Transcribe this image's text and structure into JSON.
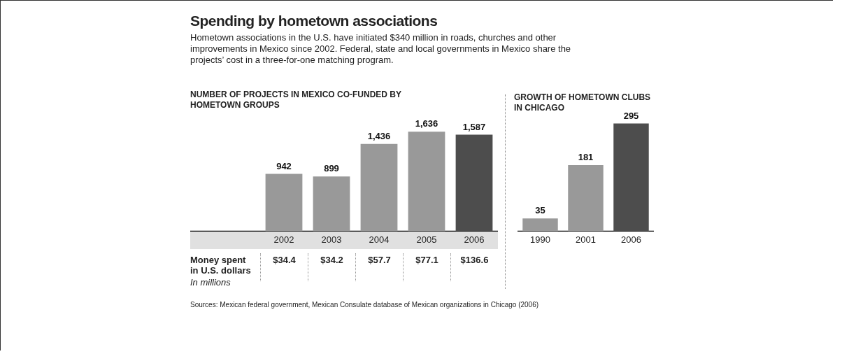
{
  "chart_data": [
    {
      "type": "other",
      "title": "Spending by hometown associations",
      "subtitle": "Hometown associations in the U.S. have initiated $340 million in roads, churches and other improvements in Mexico since 2002. Federal, state and local governments in Mexico share the projects’ cost in a three-for-one matching program.",
      "annotations": [
        "Sources: Mexican federal government, Mexican Consulate database of Mexican organizations in Chicago (2006)"
      ]
    },
    {
      "type": "bar",
      "title": "NUMBER OF PROJECTS IN MEXICO CO-FUNDED BY HOMETOWN GROUPS",
      "categories": [
        "2002",
        "2003",
        "2004",
        "2005",
        "2006"
      ],
      "values": [
        942,
        899,
        1436,
        1636,
        1587
      ],
      "value_labels": [
        "942",
        "899",
        "1,436",
        "1,636",
        "1,587"
      ],
      "colors": [
        "#999999",
        "#999999",
        "#999999",
        "#999999",
        "#4d4d4d"
      ],
      "grid": false,
      "legend": false,
      "tick_labels": "x",
      "annotations": [
        "Money spent in U.S. dollars",
        "In millions",
        "$34.4",
        "$34.2",
        "$57.7",
        "$77.1",
        "$136.6"
      ]
    },
    {
      "type": "bar",
      "title": "GROWTH OF HOMETOWN CLUBS IN CHICAGO",
      "categories": [
        "1990",
        "2001",
        "2006"
      ],
      "values": [
        35,
        181,
        295
      ],
      "value_labels": [
        "35",
        "181",
        "295"
      ],
      "colors": [
        "#999999",
        "#999999",
        "#4d4d4d"
      ],
      "grid": false,
      "legend": false,
      "tick_labels": "x"
    }
  ]
}
